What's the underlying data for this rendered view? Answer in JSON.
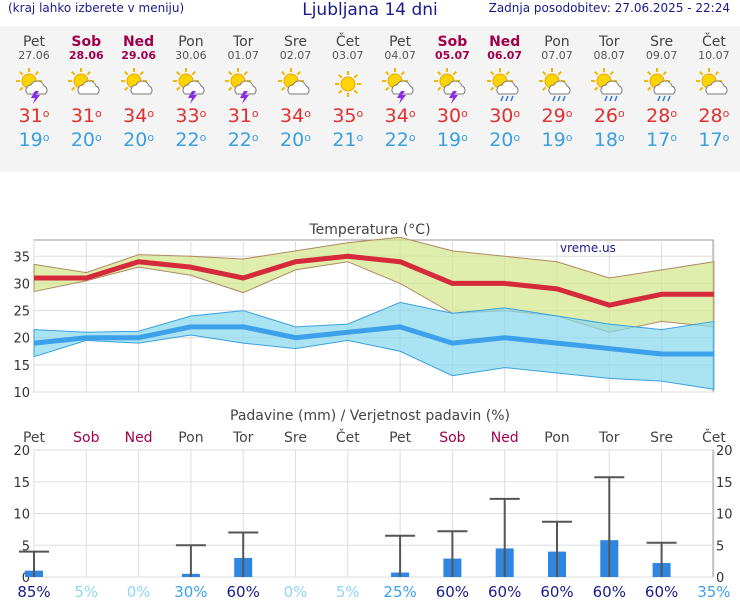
{
  "header": {
    "left": "(kraj lahko izberete v meniju)",
    "title": "Ljubljana 14 dni",
    "right": "Zadnja posodobitev: 27.06.2025 - 22:24"
  },
  "colors": {
    "max": "#e03030",
    "min": "#3aa0e0",
    "weekend": "#a0004a",
    "bars": "#2e86e0"
  },
  "days": [
    {
      "name": "Pet",
      "date": "27.06",
      "weekend": false,
      "icon": "sun-thunder-icon",
      "tmax": "31",
      "tmin": "19"
    },
    {
      "name": "Sob",
      "date": "28.06",
      "weekend": true,
      "icon": "sun-cloud-icon",
      "tmax": "31",
      "tmin": "20"
    },
    {
      "name": "Ned",
      "date": "29.06",
      "weekend": true,
      "icon": "sun-cloud-icon",
      "tmax": "34",
      "tmin": "20"
    },
    {
      "name": "Pon",
      "date": "30.06",
      "weekend": false,
      "icon": "sun-thunder-icon",
      "tmax": "33",
      "tmin": "22"
    },
    {
      "name": "Tor",
      "date": "01.07",
      "weekend": false,
      "icon": "sun-thunder-icon",
      "tmax": "31",
      "tmin": "22"
    },
    {
      "name": "Sre",
      "date": "02.07",
      "weekend": false,
      "icon": "sun-cloud-icon",
      "tmax": "34",
      "tmin": "20"
    },
    {
      "name": "Čet",
      "date": "03.07",
      "weekend": false,
      "icon": "sun-icon",
      "tmax": "35",
      "tmin": "21"
    },
    {
      "name": "Pet",
      "date": "04.07",
      "weekend": false,
      "icon": "sun-thunder-icon",
      "tmax": "34",
      "tmin": "22"
    },
    {
      "name": "Sob",
      "date": "05.07",
      "weekend": true,
      "icon": "sun-thunder-icon",
      "tmax": "30",
      "tmin": "19"
    },
    {
      "name": "Ned",
      "date": "06.07",
      "weekend": true,
      "icon": "sun-cloud-rain-icon",
      "tmax": "30",
      "tmin": "20"
    },
    {
      "name": "Pon",
      "date": "07.07",
      "weekend": false,
      "icon": "sun-cloud-rain-icon",
      "tmax": "29",
      "tmin": "19"
    },
    {
      "name": "Tor",
      "date": "08.07",
      "weekend": false,
      "icon": "sun-cloud-rain-icon",
      "tmax": "26",
      "tmin": "18"
    },
    {
      "name": "Sre",
      "date": "09.07",
      "weekend": false,
      "icon": "sun-cloud-rain-icon",
      "tmax": "28",
      "tmin": "17"
    },
    {
      "name": "Čet",
      "date": "10.07",
      "weekend": false,
      "icon": "sun-cloud-icon",
      "tmax": "28",
      "tmin": "17"
    }
  ],
  "chart_data": [
    {
      "type": "line",
      "title": "Temperatura (°C)",
      "watermark": "vreme.us",
      "x": [
        "27.06",
        "28.06",
        "29.06",
        "30.06",
        "01.07",
        "02.07",
        "03.07",
        "04.07",
        "05.07",
        "06.07",
        "07.07",
        "08.07",
        "09.07",
        "10.07"
      ],
      "ylim": [
        10,
        38
      ],
      "yticks": [
        10,
        15,
        20,
        25,
        30,
        35
      ],
      "grid": true,
      "series": [
        {
          "role": "max_mean",
          "color": "#d42a3a",
          "values": [
            31,
            31,
            34,
            33,
            31,
            34,
            35,
            34,
            30,
            30,
            29,
            26,
            28,
            28
          ]
        },
        {
          "role": "max_band_high",
          "values": [
            33.5,
            32,
            35.3,
            35,
            34.5,
            36,
            37.5,
            38.5,
            36,
            35,
            34,
            31,
            32.5,
            34
          ]
        },
        {
          "role": "max_band_low",
          "values": [
            28.5,
            30.5,
            33,
            31.5,
            28.3,
            32.5,
            34,
            30,
            24.5,
            25,
            24,
            21,
            23,
            22
          ]
        },
        {
          "role": "min_mean",
          "color": "#3da0ea",
          "values": [
            19,
            20,
            20,
            22,
            22,
            20,
            21,
            22,
            19,
            20,
            19,
            18,
            17,
            17
          ]
        },
        {
          "role": "min_band_high",
          "values": [
            21.5,
            21,
            21.2,
            24,
            25,
            22,
            22.5,
            26.5,
            24.5,
            25.5,
            24,
            22.5,
            21.5,
            23
          ]
        },
        {
          "role": "min_band_low",
          "values": [
            16.5,
            19.5,
            19,
            20.5,
            19,
            18,
            19.5,
            17.5,
            13,
            14.5,
            13.5,
            12.5,
            12,
            10.5
          ]
        }
      ]
    },
    {
      "type": "bar",
      "title": "Padavine (mm) / Verjetnost padavin (%)",
      "categories": [
        "Pet",
        "Sob",
        "Ned",
        "Pon",
        "Tor",
        "Sre",
        "Čet",
        "Pet",
        "Sob",
        "Ned",
        "Pon",
        "Tor",
        "Sre",
        "Čet"
      ],
      "weekend": [
        false,
        true,
        true,
        false,
        false,
        false,
        false,
        false,
        true,
        true,
        false,
        false,
        false,
        false
      ],
      "ylim": [
        0,
        20
      ],
      "yticks": [
        0,
        5,
        10,
        15,
        20
      ],
      "grid": true,
      "values": [
        1,
        0,
        0,
        0.5,
        3,
        0,
        0,
        0.7,
        2.9,
        4.5,
        4,
        5.8,
        2.2,
        0
      ],
      "max_values": [
        4,
        null,
        null,
        5,
        7,
        null,
        null,
        6.5,
        7.2,
        12.3,
        8.7,
        15.7,
        5.4,
        null
      ],
      "probability": [
        "85%",
        "5%",
        "0%",
        "30%",
        "60%",
        "0%",
        "5%",
        "25%",
        "60%",
        "60%",
        "60%",
        "60%",
        "60%",
        "35%"
      ]
    }
  ]
}
